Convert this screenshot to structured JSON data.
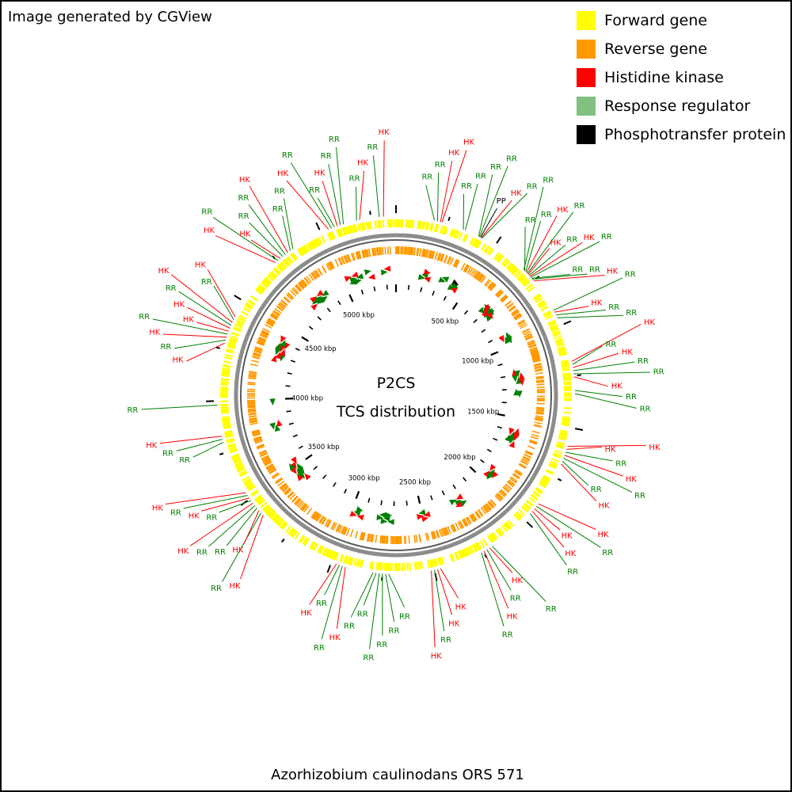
{
  "credit": "Image generated by CGView",
  "organism": "Azorhizobium caulinodans ORS 571",
  "center_title": [
    "P2CS",
    "TCS distribution"
  ],
  "legend": [
    {
      "label": "Forward gene",
      "color": "#ffff00",
      "icon": "forward-gene-swatch"
    },
    {
      "label": "Reverse gene",
      "color": "#ff9900",
      "icon": "reverse-gene-swatch"
    },
    {
      "label": "Histidine kinase",
      "color": "#ff0000",
      "icon": "histidine-kinase-swatch"
    },
    {
      "label": "Response regulator",
      "color": "#80c080",
      "icon": "response-regulator-swatch"
    },
    {
      "label": "Phosphotransfer protein",
      "color": "#000000",
      "icon": "phosphotransfer-protein-swatch"
    }
  ],
  "colors": {
    "forward": "#ffff00",
    "reverse": "#ff9900",
    "hk": "#ff0000",
    "rr": "#008000",
    "pp": "#000000",
    "backbone": "#8c8c8c"
  },
  "genome_length_kbp": 5370,
  "kbp_labels": [
    "500 kbp",
    "1000 kbp",
    "1500 kbp",
    "2000 kbp",
    "2500 kbp",
    "3000 kbp",
    "3500 kbp",
    "4000 kbp",
    "4500 kbp",
    "5000 kbp"
  ],
  "features": [
    {
      "type": "RR",
      "kbp": 185
    },
    {
      "type": "RR",
      "kbp": 200
    },
    {
      "type": "HK",
      "kbp": 215
    },
    {
      "type": "HK",
      "kbp": 222
    },
    {
      "type": "RR",
      "kbp": 330
    },
    {
      "type": "RR",
      "kbp": 340
    },
    {
      "type": "RR",
      "kbp": 410
    },
    {
      "type": "RR",
      "kbp": 414
    },
    {
      "type": "PP",
      "kbp": 420
    },
    {
      "type": "HK",
      "kbp": 424
    },
    {
      "type": "RR",
      "kbp": 428
    },
    {
      "type": "RR",
      "kbp": 680
    },
    {
      "type": "RR",
      "kbp": 686
    },
    {
      "type": "RR",
      "kbp": 692
    },
    {
      "type": "HK",
      "kbp": 698
    },
    {
      "type": "RR",
      "kbp": 704
    },
    {
      "type": "HK",
      "kbp": 710
    },
    {
      "type": "RR",
      "kbp": 716
    },
    {
      "type": "HK",
      "kbp": 722
    },
    {
      "type": "RR",
      "kbp": 728
    },
    {
      "type": "RR",
      "kbp": 734
    },
    {
      "type": "RR",
      "kbp": 740
    },
    {
      "type": "HK",
      "kbp": 750
    },
    {
      "type": "RR",
      "kbp": 920
    },
    {
      "type": "HK",
      "kbp": 930
    },
    {
      "type": "RR",
      "kbp": 945
    },
    {
      "type": "RR",
      "kbp": 960
    },
    {
      "type": "HK",
      "kbp": 1180
    },
    {
      "type": "RR",
      "kbp": 1195
    },
    {
      "type": "HK",
      "kbp": 1210
    },
    {
      "type": "RR",
      "kbp": 1225
    },
    {
      "type": "RR",
      "kbp": 1240
    },
    {
      "type": "HK",
      "kbp": 1255
    },
    {
      "type": "RR",
      "kbp": 1320
    },
    {
      "type": "RR",
      "kbp": 1335
    },
    {
      "type": "HK",
      "kbp": 1590
    },
    {
      "type": "HK",
      "kbp": 1605
    },
    {
      "type": "RR",
      "kbp": 1620
    },
    {
      "type": "HK",
      "kbp": 1635
    },
    {
      "type": "RR",
      "kbp": 1650
    },
    {
      "type": "RR",
      "kbp": 1665
    },
    {
      "type": "HK",
      "kbp": 1680
    },
    {
      "type": "HK",
      "kbp": 1900
    },
    {
      "type": "RR",
      "kbp": 1915
    },
    {
      "type": "HK",
      "kbp": 1930
    },
    {
      "type": "HK",
      "kbp": 1945
    },
    {
      "type": "RR",
      "kbp": 1960
    },
    {
      "type": "RR",
      "kbp": 2200
    },
    {
      "type": "HK",
      "kbp": 2215
    },
    {
      "type": "RR",
      "kbp": 2230
    },
    {
      "type": "HK",
      "kbp": 2245
    },
    {
      "type": "RR",
      "kbp": 2260
    },
    {
      "type": "HK",
      "kbp": 2470
    },
    {
      "type": "HK",
      "kbp": 2485
    },
    {
      "type": "RR",
      "kbp": 2500
    },
    {
      "type": "HK",
      "kbp": 2515
    },
    {
      "type": "RR",
      "kbp": 2720
    },
    {
      "type": "RR",
      "kbp": 2735
    },
    {
      "type": "RR",
      "kbp": 2750
    },
    {
      "type": "RR",
      "kbp": 2765
    },
    {
      "type": "RR",
      "kbp": 2780
    },
    {
      "type": "RR",
      "kbp": 2795
    },
    {
      "type": "HK",
      "kbp": 2930
    },
    {
      "type": "RR",
      "kbp": 2945
    },
    {
      "type": "RR",
      "kbp": 2960
    },
    {
      "type": "HK",
      "kbp": 2975
    },
    {
      "type": "HK",
      "kbp": 3400
    },
    {
      "type": "RR",
      "kbp": 3415
    },
    {
      "type": "HK",
      "kbp": 3430
    },
    {
      "type": "RR",
      "kbp": 3445
    },
    {
      "type": "RR",
      "kbp": 3460
    },
    {
      "type": "HK",
      "kbp": 3475
    },
    {
      "type": "RR",
      "kbp": 3490
    },
    {
      "type": "HK",
      "kbp": 3505
    },
    {
      "type": "RR",
      "kbp": 3520
    },
    {
      "type": "HK",
      "kbp": 3535
    },
    {
      "type": "RR",
      "kbp": 3800
    },
    {
      "type": "RR",
      "kbp": 3815
    },
    {
      "type": "HK",
      "kbp": 3830
    },
    {
      "type": "RR",
      "kbp": 3980
    },
    {
      "type": "HK",
      "kbp": 4280
    },
    {
      "type": "RR",
      "kbp": 4295
    },
    {
      "type": "HK",
      "kbp": 4310
    },
    {
      "type": "RR",
      "kbp": 4325
    },
    {
      "type": "HK",
      "kbp": 4340
    },
    {
      "type": "HK",
      "kbp": 4355
    },
    {
      "type": "RR",
      "kbp": 4370
    },
    {
      "type": "HK",
      "kbp": 4385
    },
    {
      "type": "RR",
      "kbp": 4400
    },
    {
      "type": "HK",
      "kbp": 4415
    },
    {
      "type": "HK",
      "kbp": 4740
    },
    {
      "type": "RR",
      "kbp": 4755
    },
    {
      "type": "HK",
      "kbp": 4770
    },
    {
      "type": "RR",
      "kbp": 4785
    },
    {
      "type": "RR",
      "kbp": 4800
    },
    {
      "type": "HK",
      "kbp": 4815
    },
    {
      "type": "RR",
      "kbp": 4830
    },
    {
      "type": "RR",
      "kbp": 4845
    },
    {
      "type": "HK",
      "kbp": 5040
    },
    {
      "type": "RR",
      "kbp": 5055
    },
    {
      "type": "RR",
      "kbp": 5070
    },
    {
      "type": "HK",
      "kbp": 5085
    },
    {
      "type": "RR",
      "kbp": 5100
    },
    {
      "type": "RR",
      "kbp": 5115
    },
    {
      "type": "RR",
      "kbp": 5180
    },
    {
      "type": "HK",
      "kbp": 5195
    },
    {
      "type": "RR",
      "kbp": 5290
    },
    {
      "type": "HK",
      "kbp": 5310
    }
  ]
}
